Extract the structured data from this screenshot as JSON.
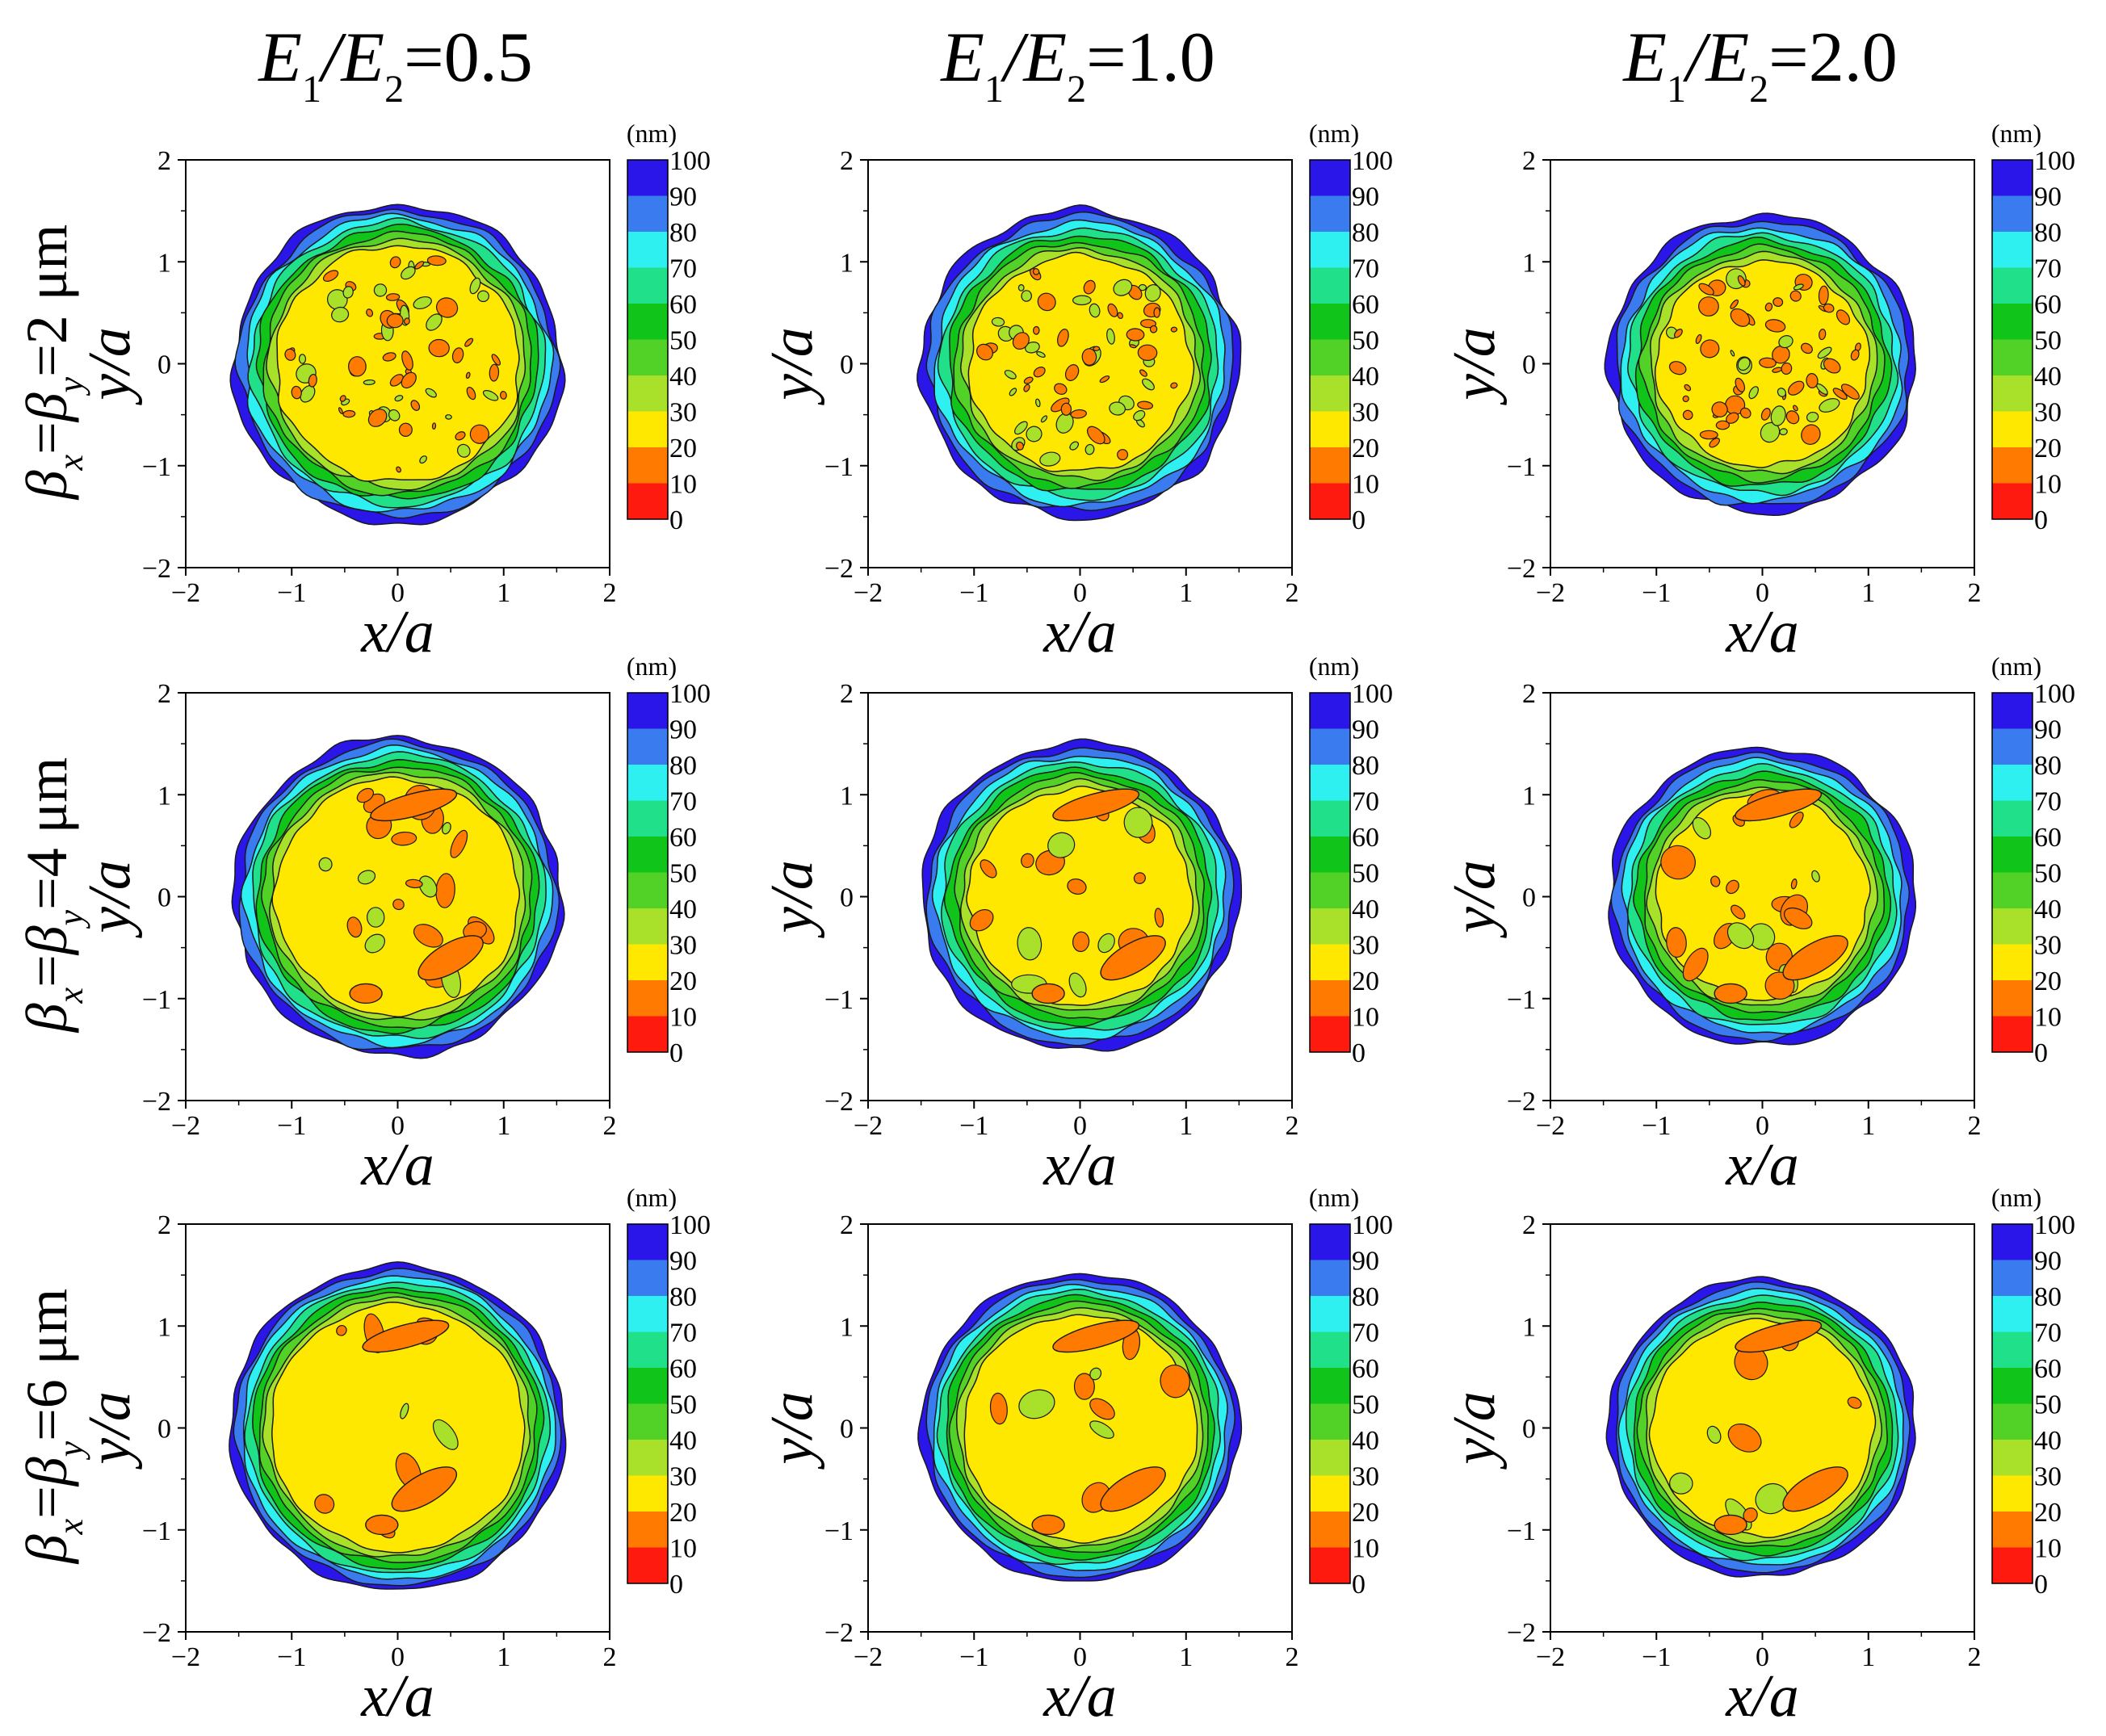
{
  "figure": {
    "column_headers": [
      {
        "pre": "E",
        "sub1": "1",
        "slash": "/E",
        "sub2": "2",
        "post": "=0.5"
      },
      {
        "pre": "E",
        "sub1": "1",
        "slash": "/E",
        "sub2": "2",
        "post": "=1.0"
      },
      {
        "pre": "E",
        "sub1": "1",
        "slash": "/E",
        "sub2": "2",
        "post": "=2.0"
      }
    ],
    "row_headers": [
      {
        "beta": "β",
        "subx": "x",
        "mid": "=",
        "beta2": "β",
        "suby": "y",
        "post": "=2 μm"
      },
      {
        "beta": "β",
        "subx": "x",
        "mid": "=",
        "beta2": "β",
        "suby": "y",
        "post": "=4 μm"
      },
      {
        "beta": "β",
        "subx": "x",
        "mid": "=",
        "beta2": "β",
        "suby": "y",
        "post": "=6 μm"
      }
    ]
  },
  "chart_data": {
    "type": "heatmap",
    "subtype": "filled-contour grid 3x3",
    "xlabel": "x/a",
    "ylabel": "y/a",
    "xlim": [
      -2,
      2
    ],
    "ylim": [
      -2,
      2
    ],
    "xticks": [
      "−2",
      "−1",
      "0",
      "1",
      "2"
    ],
    "yticks": [
      "2",
      "1",
      "0",
      "−1",
      "−2"
    ],
    "colorbar": {
      "unit": "(nm)",
      "levels": [
        "100",
        "90",
        "80",
        "70",
        "60",
        "50",
        "40",
        "30",
        "20",
        "10",
        "0"
      ],
      "colors": [
        "#2a16e8",
        "#3a7cf0",
        "#2ff0f0",
        "#20e08a",
        "#10c41a",
        "#52d226",
        "#a8e02a",
        "#ffe800",
        "#ff7a00",
        "#ff1a10"
      ]
    },
    "level_colors": {
      "90-100": "#2a16e8",
      "80-90": "#3a7cf0",
      "70-80": "#2ff0f0",
      "60-70": "#20e08a",
      "50-60": "#10c41a",
      "40-50": "#52d226",
      "30-40": "#a8e02a",
      "20-30": "#ffe800",
      "10-20": "#ff7a00",
      "0-10": "#ff1a10"
    },
    "panels": [
      {
        "row": 0,
        "col": 0,
        "E1_E2": 0.5,
        "beta_um": 2,
        "outer_radius": 1.55,
        "inner_plateau_radius": 1.15,
        "min_level": "10-20",
        "texture": "fine speckle"
      },
      {
        "row": 0,
        "col": 1,
        "E1_E2": 1.0,
        "beta_um": 2,
        "outer_radius": 1.5,
        "inner_plateau_radius": 1.05,
        "min_level": "10-20",
        "texture": "fine speckle"
      },
      {
        "row": 0,
        "col": 2,
        "E1_E2": 2.0,
        "beta_um": 2,
        "outer_radius": 1.45,
        "inner_plateau_radius": 1.0,
        "min_level": "10-20",
        "texture": "fine speckle"
      },
      {
        "row": 1,
        "col": 0,
        "E1_E2": 0.5,
        "beta_um": 4,
        "outer_radius": 1.55,
        "inner_plateau_radius": 1.15,
        "min_level": "10-20",
        "texture": "medium islands"
      },
      {
        "row": 1,
        "col": 1,
        "E1_E2": 1.0,
        "beta_um": 4,
        "outer_radius": 1.5,
        "inner_plateau_radius": 1.05,
        "min_level": "10-20",
        "texture": "medium islands"
      },
      {
        "row": 1,
        "col": 2,
        "E1_E2": 2.0,
        "beta_um": 4,
        "outer_radius": 1.45,
        "inner_plateau_radius": 1.0,
        "min_level": "10-20",
        "texture": "medium islands"
      },
      {
        "row": 2,
        "col": 0,
        "E1_E2": 0.5,
        "beta_um": 6,
        "outer_radius": 1.58,
        "inner_plateau_radius": 1.2,
        "min_level": "10-20",
        "texture": "smooth"
      },
      {
        "row": 2,
        "col": 1,
        "E1_E2": 1.0,
        "beta_um": 6,
        "outer_radius": 1.5,
        "inner_plateau_radius": 1.1,
        "min_level": "10-20",
        "texture": "smooth"
      },
      {
        "row": 2,
        "col": 2,
        "E1_E2": 2.0,
        "beta_um": 6,
        "outer_radius": 1.45,
        "inner_plateau_radius": 1.05,
        "min_level": "10-20",
        "texture": "smooth"
      }
    ]
  }
}
